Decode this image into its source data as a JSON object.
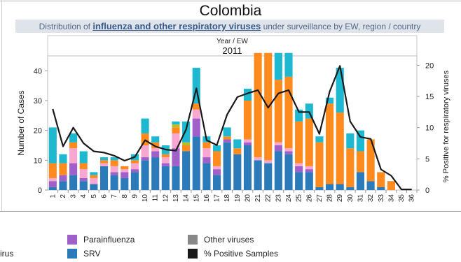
{
  "header": {
    "title": "Colombia",
    "subtitle_prefix": "Distribution of",
    "subtitle_highlight": "influenza and other respiratory viruses",
    "subtitle_suffix": "under surveillance by EW, region / country"
  },
  "chart_data": {
    "type": "bar",
    "stacked": true,
    "top_header": "Year  /  EW",
    "year": "2011",
    "ylabel": "Number of Cases",
    "y2label": "% Positive for respiratory viruses",
    "ylim": [
      0,
      45
    ],
    "y2lim": [
      0,
      21.5
    ],
    "yticks": [
      0,
      10,
      20,
      30,
      40
    ],
    "y2ticks": [
      0,
      5,
      10,
      15,
      20
    ],
    "grid": false,
    "categories": [
      "1",
      "2",
      "3",
      "4",
      "5",
      "6",
      "7",
      "8",
      "9",
      "10",
      "11",
      "12",
      "13",
      "14",
      "15",
      "16",
      "17",
      "18",
      "19",
      "20",
      "21",
      "22",
      "23",
      "24",
      "25",
      "26",
      "27",
      "28",
      "29",
      "30",
      "31",
      "32",
      "33",
      "34",
      "35",
      "36"
    ],
    "series": [
      {
        "name": "SRV",
        "color": "#2b7bba",
        "values": [
          1,
          3,
          5,
          3,
          2,
          8,
          5,
          4,
          6,
          10,
          11,
          8,
          8,
          13,
          18,
          9,
          5,
          16,
          12,
          15,
          10,
          9,
          13,
          12,
          6,
          6,
          1,
          2,
          2,
          1,
          6,
          3,
          1,
          0,
          0,
          0
        ]
      },
      {
        "name": "Parainfluenza",
        "color": "#a15fc9",
        "values": [
          2,
          2,
          4,
          1,
          0,
          0,
          1,
          2,
          1,
          1,
          2,
          1,
          6,
          0,
          6,
          2,
          2,
          1,
          0,
          1,
          0,
          0,
          2,
          1,
          2,
          1,
          0,
          0,
          0,
          0,
          0,
          0,
          0,
          0,
          0,
          0
        ]
      },
      {
        "name": "",
        "color": "#f8a8d0",
        "values": [
          1,
          0,
          5,
          3,
          2,
          1,
          2,
          1,
          2,
          4,
          1,
          2,
          5,
          0,
          3,
          3,
          1,
          0,
          0,
          1,
          1,
          1,
          1,
          1,
          1,
          1,
          0,
          0,
          0,
          0,
          0,
          0,
          0,
          0,
          0,
          0
        ]
      },
      {
        "name": "",
        "color": "#ff8a1e",
        "values": [
          5,
          4,
          2,
          2,
          1,
          1,
          2,
          1,
          1,
          4,
          2,
          1,
          2,
          2,
          2,
          2,
          5,
          1,
          2,
          13,
          35,
          36,
          21,
          24,
          14,
          16,
          15,
          27,
          24,
          13,
          7,
          14,
          5,
          3,
          0,
          0
        ]
      },
      {
        "name": "",
        "color": "#bcbd22",
        "values": [
          0,
          0,
          0,
          0,
          0,
          0,
          0,
          0,
          0,
          0,
          0,
          0,
          1,
          1,
          0,
          0,
          0,
          0,
          0,
          0,
          0,
          0,
          0,
          0,
          0,
          0,
          0,
          0,
          0,
          0,
          0,
          0,
          0,
          0,
          0,
          0
        ]
      },
      {
        "name": "",
        "color": "#1eb9d0",
        "values": [
          12,
          3,
          3,
          4,
          1,
          1,
          1,
          0,
          2,
          5,
          2,
          3,
          1,
          7,
          12,
          2,
          2,
          3,
          3,
          4,
          0,
          0,
          9,
          8,
          4,
          5,
          2,
          2,
          15,
          5,
          7,
          0,
          0,
          0,
          0,
          0
        ]
      }
    ],
    "line_series": {
      "name": "% Positive Samples",
      "color": "#1a1a1a",
      "values": [
        13,
        7,
        10,
        7.5,
        6.2,
        6,
        5.5,
        4.7,
        5.3,
        8,
        7,
        6.5,
        6.3,
        9.7,
        16.3,
        8,
        7.2,
        12.1,
        14.9,
        15.5,
        16,
        13.2,
        15.5,
        16,
        12.5,
        12.5,
        9,
        15.8,
        19.9,
        11,
        8.5,
        8.2,
        3.3,
        2.3,
        0.1,
        0.1
      ]
    }
  },
  "legend": {
    "items": [
      {
        "label": "Parainfluenza",
        "color": "#a15fc9"
      },
      {
        "label": "SRV",
        "color": "#2b7bba"
      },
      {
        "label": "Other viruses",
        "color": "#888888"
      },
      {
        "label": "% Positive Samples",
        "color": "#1a1a1a"
      },
      {
        "label": "irus",
        "color": ""
      }
    ]
  }
}
